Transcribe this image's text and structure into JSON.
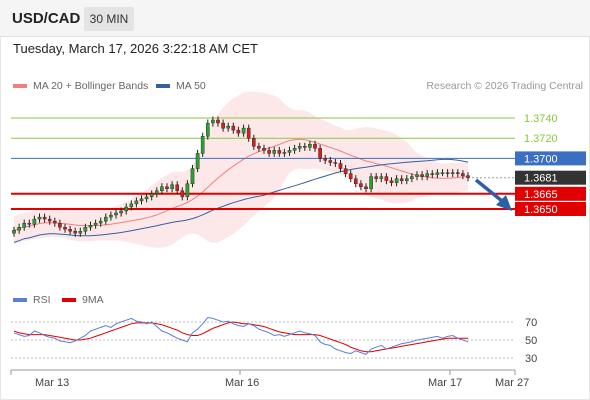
{
  "header": {
    "symbol": "USD/CAD",
    "timeframe": "30 MIN"
  },
  "datetime": "Tuesday, March 17, 2026 3:22:18 AM CET",
  "legend": {
    "ma20_label": "MA 20 + Bollinger Bands",
    "ma50_label": "MA 50",
    "credit": "Research © 2026 Trading Central"
  },
  "rsi_legend": {
    "rsi_label": "RSI",
    "ma_label": "9MA"
  },
  "colors": {
    "bollinger": "#f08080",
    "ma50": "#3a5f9e",
    "resistance": "#8cc63f",
    "pivot": "#3a6fc4",
    "support": "#e00000",
    "current": "#333333",
    "rsi": "#5b7fd6",
    "rsi_ma": "#e00000"
  },
  "levels": [
    {
      "label": "1.3740",
      "value": 1.374,
      "kind": "resistance"
    },
    {
      "label": "1.3720",
      "value": 1.372,
      "kind": "resistance"
    },
    {
      "label": "1.3700",
      "value": 1.37,
      "kind": "pivot"
    },
    {
      "label": "1.3681",
      "value": 1.3681,
      "kind": "current"
    },
    {
      "label": "1.3665",
      "value": 1.3665,
      "kind": "support"
    },
    {
      "label": "1.3650",
      "value": 1.365,
      "kind": "support"
    }
  ],
  "rsi_axis": [
    "70",
    "50",
    "30"
  ],
  "x_axis": [
    "Mar 13",
    "Mar 16",
    "Mar 17",
    "Mar 27"
  ],
  "chart_data": {
    "type": "candlestick",
    "series_close": [
      1.3629,
      1.3632,
      1.3636,
      1.3635,
      1.364,
      1.3642,
      1.364,
      1.3638,
      1.3636,
      1.3632,
      1.363,
      1.3628,
      1.3626,
      1.3628,
      1.3632,
      1.3634,
      1.3636,
      1.3638,
      1.3642,
      1.3644,
      1.3646,
      1.3648,
      1.3652,
      1.3655,
      1.3658,
      1.366,
      1.3662,
      1.3665,
      1.3668,
      1.3672,
      1.367,
      1.3674,
      1.3668,
      1.3662,
      1.3675,
      1.369,
      1.3705,
      1.3722,
      1.3735,
      1.3738,
      1.3735,
      1.373,
      1.3732,
      1.3728,
      1.3725,
      1.373,
      1.372,
      1.3712,
      1.371,
      1.3708,
      1.3705,
      1.3708,
      1.3705,
      1.3706,
      1.3708,
      1.371,
      1.3712,
      1.3711,
      1.3714,
      1.371,
      1.37,
      1.3698,
      1.3696,
      1.3695,
      1.369,
      1.3685,
      1.368,
      1.3675,
      1.3672,
      1.367,
      1.3682,
      1.368,
      1.3682,
      1.3678,
      1.3676,
      1.368,
      1.3678,
      1.368,
      1.3682,
      1.3684,
      1.3682,
      1.3685,
      1.3684,
      1.3686,
      1.3686,
      1.3685,
      1.3686,
      1.3685,
      1.3683,
      1.3681
    ],
    "rsi": [
      58,
      56,
      54,
      55,
      60,
      58,
      55,
      53,
      52,
      49,
      48,
      47,
      49,
      52,
      55,
      60,
      62,
      64,
      66,
      64,
      68,
      70,
      72,
      74,
      71,
      70,
      68,
      70,
      65,
      60,
      58,
      55,
      52,
      50,
      48,
      58,
      62,
      68,
      75,
      74,
      72,
      70,
      71,
      68,
      66,
      65,
      68,
      66,
      62,
      60,
      58,
      55,
      56,
      54,
      56,
      58,
      60,
      58,
      57,
      55,
      48,
      45,
      44,
      40,
      38,
      36,
      35,
      38,
      36,
      34,
      40,
      42,
      44,
      40,
      42,
      44,
      46,
      47,
      48,
      50,
      51,
      52,
      53,
      54,
      52,
      54,
      55,
      52,
      50,
      48
    ],
    "rsi_ma": [
      60,
      58,
      57,
      56,
      56,
      56,
      56,
      55,
      54,
      53,
      52,
      51,
      50,
      50,
      51,
      52,
      54,
      56,
      58,
      60,
      62,
      64,
      66,
      68,
      69,
      69,
      69,
      69,
      68,
      67,
      65,
      63,
      61,
      58,
      56,
      55,
      55,
      57,
      60,
      63,
      65,
      67,
      69,
      70,
      69,
      68,
      68,
      67,
      66,
      65,
      63,
      61,
      59,
      58,
      57,
      56,
      56,
      56,
      56,
      56,
      55,
      53,
      51,
      49,
      47,
      45,
      42,
      40,
      38,
      37,
      37,
      38,
      39,
      40,
      41,
      42,
      43,
      44,
      45,
      46,
      47,
      48,
      49,
      50,
      51,
      52,
      52,
      52,
      52,
      52
    ],
    "rsi_ylim": [
      20,
      80
    ]
  }
}
